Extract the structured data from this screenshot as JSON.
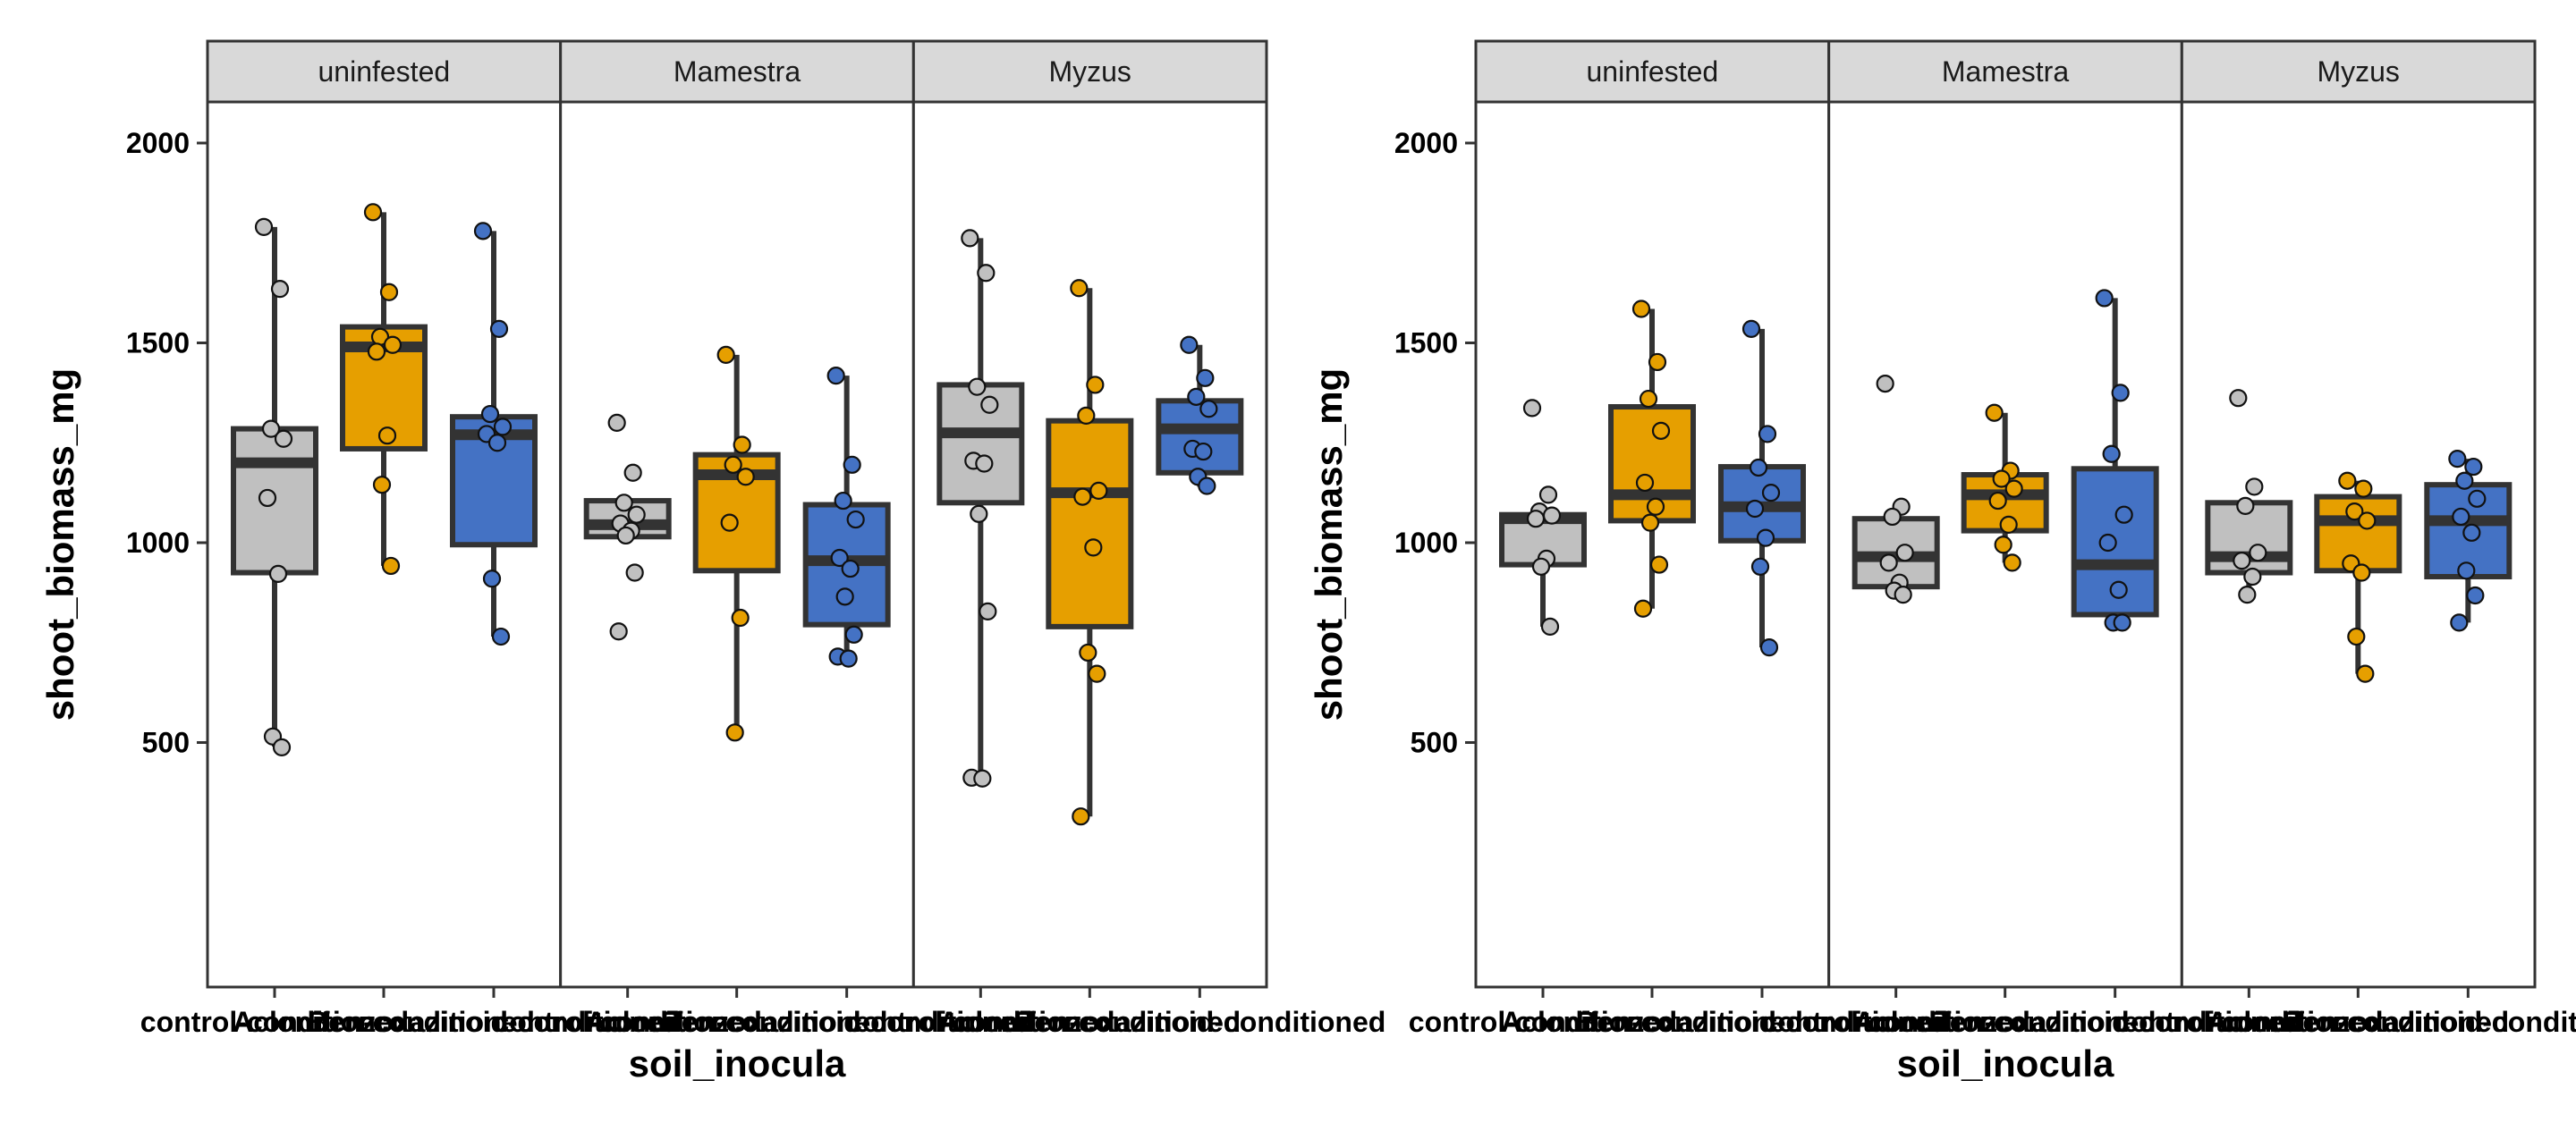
{
  "chart_data": [
    {
      "type": "boxplot",
      "xlabel": "soil_inocula",
      "ylabel": "shoot_biomass_mg",
      "ylim": [
        0,
        2200
      ],
      "yticks": [
        500,
        1000,
        1500,
        2000
      ],
      "grid": false,
      "legend": "none",
      "facets": [
        {
          "label": "uninfested",
          "categories": [
            {
              "name": "control-conditioned",
              "color": "#C0C0C0",
              "box": {
                "q1": 925,
                "median": 1200,
                "q3": 1285,
                "min": 490,
                "max": 1790
              },
              "points": [
                1790,
                1635,
                1285,
                1260,
                1112,
                922,
                515,
                488
              ]
            },
            {
              "name": "Aclonifen-conditioned",
              "color": "#E69F00",
              "box": {
                "q1": 1235,
                "median": 1490,
                "q3": 1540,
                "min": 942,
                "max": 1827
              },
              "points": [
                1827,
                1627,
                1515,
                1495,
                1478,
                1268,
                1145,
                942
              ]
            },
            {
              "name": "Benzoxazinoid-conditioned",
              "color": "#4472C4",
              "box": {
                "q1": 995,
                "median": 1270,
                "q3": 1315,
                "min": 765,
                "max": 1780
              },
              "points": [
                1780,
                1535,
                1322,
                1290,
                1272,
                1250,
                910,
                765
              ]
            }
          ]
        },
        {
          "label": "Mamestra",
          "categories": [
            {
              "name": "control-conditioned",
              "color": "#C0C0C0",
              "box": {
                "q1": 1015,
                "median": 1045,
                "q3": 1105,
                "min": 1015,
                "max": 1105
              },
              "points": [
                1300,
                1175,
                1100,
                1070,
                1048,
                1030,
                1018,
                925,
                778
              ]
            },
            {
              "name": "Aclonifen-conditioned",
              "color": "#E69F00",
              "box": {
                "q1": 930,
                "median": 1170,
                "q3": 1220,
                "min": 525,
                "max": 1470
              },
              "points": [
                1470,
                1245,
                1195,
                1165,
                1050,
                812,
                525
              ]
            },
            {
              "name": "Benzoxazinoid-conditioned",
              "color": "#4472C4",
              "box": {
                "q1": 795,
                "median": 955,
                "q3": 1095,
                "min": 710,
                "max": 1418
              },
              "points": [
                1418,
                1195,
                1105,
                1058,
                962,
                935,
                865,
                770,
                715,
                710
              ]
            }
          ]
        },
        {
          "label": "Myzus",
          "categories": [
            {
              "name": "control-conditioned",
              "color": "#C0C0C0",
              "box": {
                "q1": 1100,
                "median": 1275,
                "q3": 1395,
                "min": 412,
                "max": 1762
              },
              "points": [
                1762,
                1675,
                1390,
                1345,
                1205,
                1198,
                1072,
                828,
                412,
                410
              ]
            },
            {
              "name": "Aclonifen-conditioned",
              "color": "#E69F00",
              "box": {
                "q1": 790,
                "median": 1125,
                "q3": 1305,
                "min": 315,
                "max": 1637
              },
              "points": [
                1637,
                1395,
                1318,
                1130,
                1115,
                988,
                725,
                672,
                315
              ]
            },
            {
              "name": "Benzoxazinoid-conditioned",
              "color": "#4472C4",
              "box": {
                "q1": 1175,
                "median": 1285,
                "q3": 1355,
                "min": 1140,
                "max": 1495
              },
              "points": [
                1495,
                1412,
                1365,
                1335,
                1235,
                1228,
                1165,
                1142
              ]
            }
          ]
        }
      ]
    },
    {
      "type": "boxplot",
      "xlabel": "soil_inocula",
      "ylabel": "shoot_biomass_mg",
      "ylim": [
        0,
        2200
      ],
      "yticks": [
        500,
        1000,
        1500,
        2000
      ],
      "grid": false,
      "legend": "none",
      "facets": [
        {
          "label": "uninfested",
          "categories": [
            {
              "name": "control-conditioned",
              "color": "#C0C0C0",
              "box": {
                "q1": 945,
                "median": 1060,
                "q3": 1070,
                "min": 790,
                "max": 1070
              },
              "points": [
                1337,
                1120,
                1078,
                1068,
                1060,
                960,
                940,
                790
              ]
            },
            {
              "name": "Aclonifen-conditioned",
              "color": "#E69F00",
              "box": {
                "q1": 1055,
                "median": 1120,
                "q3": 1340,
                "min": 835,
                "max": 1585
              },
              "points": [
                1585,
                1452,
                1360,
                1280,
                1150,
                1090,
                1050,
                945,
                835
              ]
            },
            {
              "name": "Benzoxazinoid-conditioned",
              "color": "#4472C4",
              "box": {
                "q1": 1005,
                "median": 1090,
                "q3": 1190,
                "min": 738,
                "max": 1535
              },
              "points": [
                1535,
                1272,
                1188,
                1125,
                1085,
                1012,
                940,
                738
              ]
            }
          ]
        },
        {
          "label": "Mamestra",
          "categories": [
            {
              "name": "control-conditioned",
              "color": "#C0C0C0",
              "box": {
                "q1": 890,
                "median": 965,
                "q3": 1060,
                "min": 870,
                "max": 1060
              },
              "points": [
                1398,
                1090,
                1065,
                975,
                950,
                900,
                880,
                870
              ]
            },
            {
              "name": "Aclonifen-conditioned",
              "color": "#E69F00",
              "box": {
                "q1": 1030,
                "median": 1120,
                "q3": 1170,
                "min": 950,
                "max": 1325
              },
              "points": [
                1325,
                1180,
                1160,
                1135,
                1105,
                1045,
                995,
                950
              ]
            },
            {
              "name": "Benzoxazinoid-conditioned",
              "color": "#4472C4",
              "box": {
                "q1": 820,
                "median": 945,
                "q3": 1185,
                "min": 800,
                "max": 1612
              },
              "points": [
                1612,
                1375,
                1222,
                1070,
                1000,
                882,
                800,
                800
              ]
            }
          ]
        },
        {
          "label": "Myzus",
          "categories": [
            {
              "name": "control-conditioned",
              "color": "#C0C0C0",
              "box": {
                "q1": 925,
                "median": 965,
                "q3": 1100,
                "min": 870,
                "max": 1100
              },
              "points": [
                1362,
                1140,
                1092,
                975,
                955,
                915,
                870
              ]
            },
            {
              "name": "Aclonifen-conditioned",
              "color": "#E69F00",
              "box": {
                "q1": 930,
                "median": 1055,
                "q3": 1115,
                "min": 672,
                "max": 1155
              },
              "points": [
                1155,
                1135,
                1078,
                1055,
                948,
                925,
                765,
                672
              ]
            },
            {
              "name": "Benzoxazinoid-conditioned",
              "color": "#4472C4",
              "box": {
                "q1": 915,
                "median": 1055,
                "q3": 1145,
                "min": 800,
                "max": 1210
              },
              "points": [
                1210,
                1190,
                1155,
                1110,
                1065,
                1025,
                930,
                868,
                800
              ]
            }
          ]
        }
      ]
    }
  ]
}
